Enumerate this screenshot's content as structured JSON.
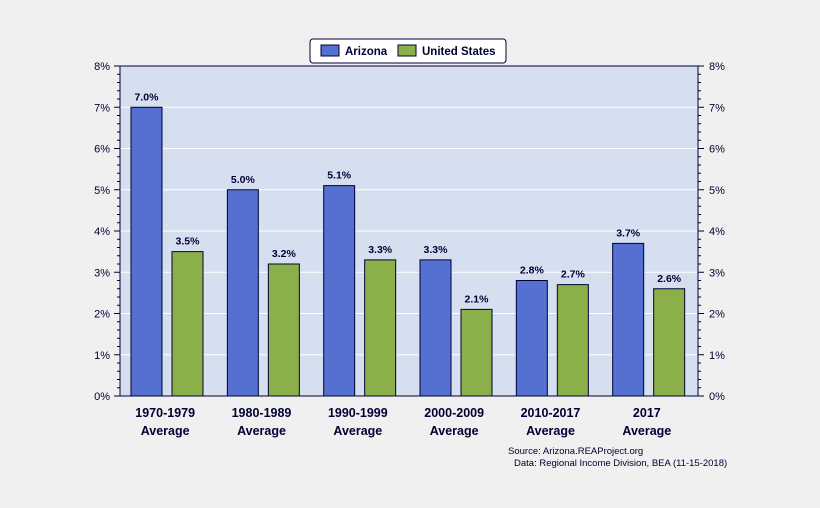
{
  "chart_data": {
    "type": "bar",
    "categories": [
      [
        "1970-1979",
        "Average"
      ],
      [
        "1980-1989",
        "Average"
      ],
      [
        "1990-1999",
        "Average"
      ],
      [
        "2000-2009",
        "Average"
      ],
      [
        "2010-2017",
        "Average"
      ],
      [
        "2017",
        "Average"
      ]
    ],
    "series": [
      {
        "name": "Arizona",
        "color": "#5470d0",
        "values": [
          7.0,
          5.0,
          5.1,
          3.3,
          2.8,
          3.7
        ],
        "labels": [
          "7.0%",
          "5.0%",
          "5.1%",
          "3.3%",
          "2.8%",
          "3.7%"
        ]
      },
      {
        "name": "United States",
        "color": "#8bb04a",
        "values": [
          3.5,
          3.2,
          3.3,
          2.1,
          2.7,
          2.6
        ],
        "labels": [
          "3.5%",
          "3.2%",
          "3.3%",
          "2.1%",
          "2.7%",
          "2.6%"
        ]
      }
    ],
    "ylim": [
      0,
      8
    ],
    "yticks": [
      "0%",
      "1%",
      "2%",
      "3%",
      "4%",
      "5%",
      "6%",
      "7%",
      "8%"
    ],
    "grid": true,
    "legend_position": "top-center",
    "plot_background": "#d6dff0",
    "source_lines": [
      "Source: Arizona.REAProject.org",
      "Data: Regional Income Division, BEA (11-15-2018)"
    ]
  }
}
